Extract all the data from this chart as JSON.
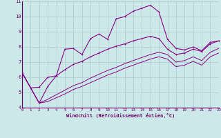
{
  "background_color": "#cce8e8",
  "grid_color": "#aacccc",
  "line_color": "#880088",
  "spine_color": "#660066",
  "xlim": [
    0,
    23
  ],
  "ylim": [
    4,
    11
  ],
  "yticks": [
    4,
    5,
    6,
    7,
    8,
    9,
    10,
    11
  ],
  "xticks": [
    0,
    1,
    2,
    3,
    4,
    5,
    6,
    7,
    8,
    9,
    10,
    11,
    12,
    13,
    14,
    15,
    16,
    17,
    18,
    19,
    20,
    21,
    22,
    23
  ],
  "xlabel": "Windchill (Refroidissement éolien,°C)",
  "line1_x": [
    0,
    1,
    2,
    3,
    4,
    5,
    6,
    7,
    8,
    9,
    10,
    11,
    12,
    13,
    14,
    15,
    16,
    17,
    18,
    19,
    20,
    21,
    22,
    23
  ],
  "line1_y": [
    6.3,
    5.3,
    4.3,
    5.4,
    6.1,
    7.85,
    7.9,
    7.5,
    8.55,
    8.85,
    8.5,
    9.85,
    10.0,
    10.35,
    10.55,
    10.75,
    10.3,
    8.5,
    7.9,
    7.8,
    8.0,
    7.75,
    8.3,
    8.4
  ],
  "line2_x": [
    0,
    1,
    2,
    3,
    4,
    5,
    6,
    7,
    8,
    9,
    10,
    11,
    12,
    13,
    14,
    15,
    16,
    17,
    18,
    19,
    20,
    21,
    22,
    23
  ],
  "line2_y": [
    6.3,
    5.3,
    5.35,
    6.0,
    6.1,
    6.5,
    6.85,
    7.05,
    7.35,
    7.6,
    7.85,
    8.05,
    8.2,
    8.4,
    8.55,
    8.7,
    8.55,
    7.85,
    7.5,
    7.6,
    7.85,
    7.7,
    8.2,
    8.4
  ],
  "line3_x": [
    0,
    1,
    2,
    3,
    4,
    5,
    6,
    7,
    8,
    9,
    10,
    11,
    12,
    13,
    14,
    15,
    16,
    17,
    18,
    19,
    20,
    21,
    22,
    23
  ],
  "line3_y": [
    6.3,
    5.3,
    4.3,
    4.55,
    4.85,
    5.15,
    5.45,
    5.65,
    5.95,
    6.2,
    6.45,
    6.65,
    6.9,
    7.1,
    7.3,
    7.5,
    7.65,
    7.5,
    7.0,
    7.1,
    7.35,
    7.1,
    7.65,
    7.9
  ],
  "line4_x": [
    0,
    1,
    2,
    3,
    4,
    5,
    6,
    7,
    8,
    9,
    10,
    11,
    12,
    13,
    14,
    15,
    16,
    17,
    18,
    19,
    20,
    21,
    22,
    23
  ],
  "line4_y": [
    6.3,
    5.3,
    4.3,
    4.4,
    4.65,
    4.9,
    5.2,
    5.4,
    5.65,
    5.9,
    6.15,
    6.35,
    6.6,
    6.8,
    7.0,
    7.2,
    7.35,
    7.2,
    6.7,
    6.8,
    7.05,
    6.8,
    7.35,
    7.6
  ]
}
